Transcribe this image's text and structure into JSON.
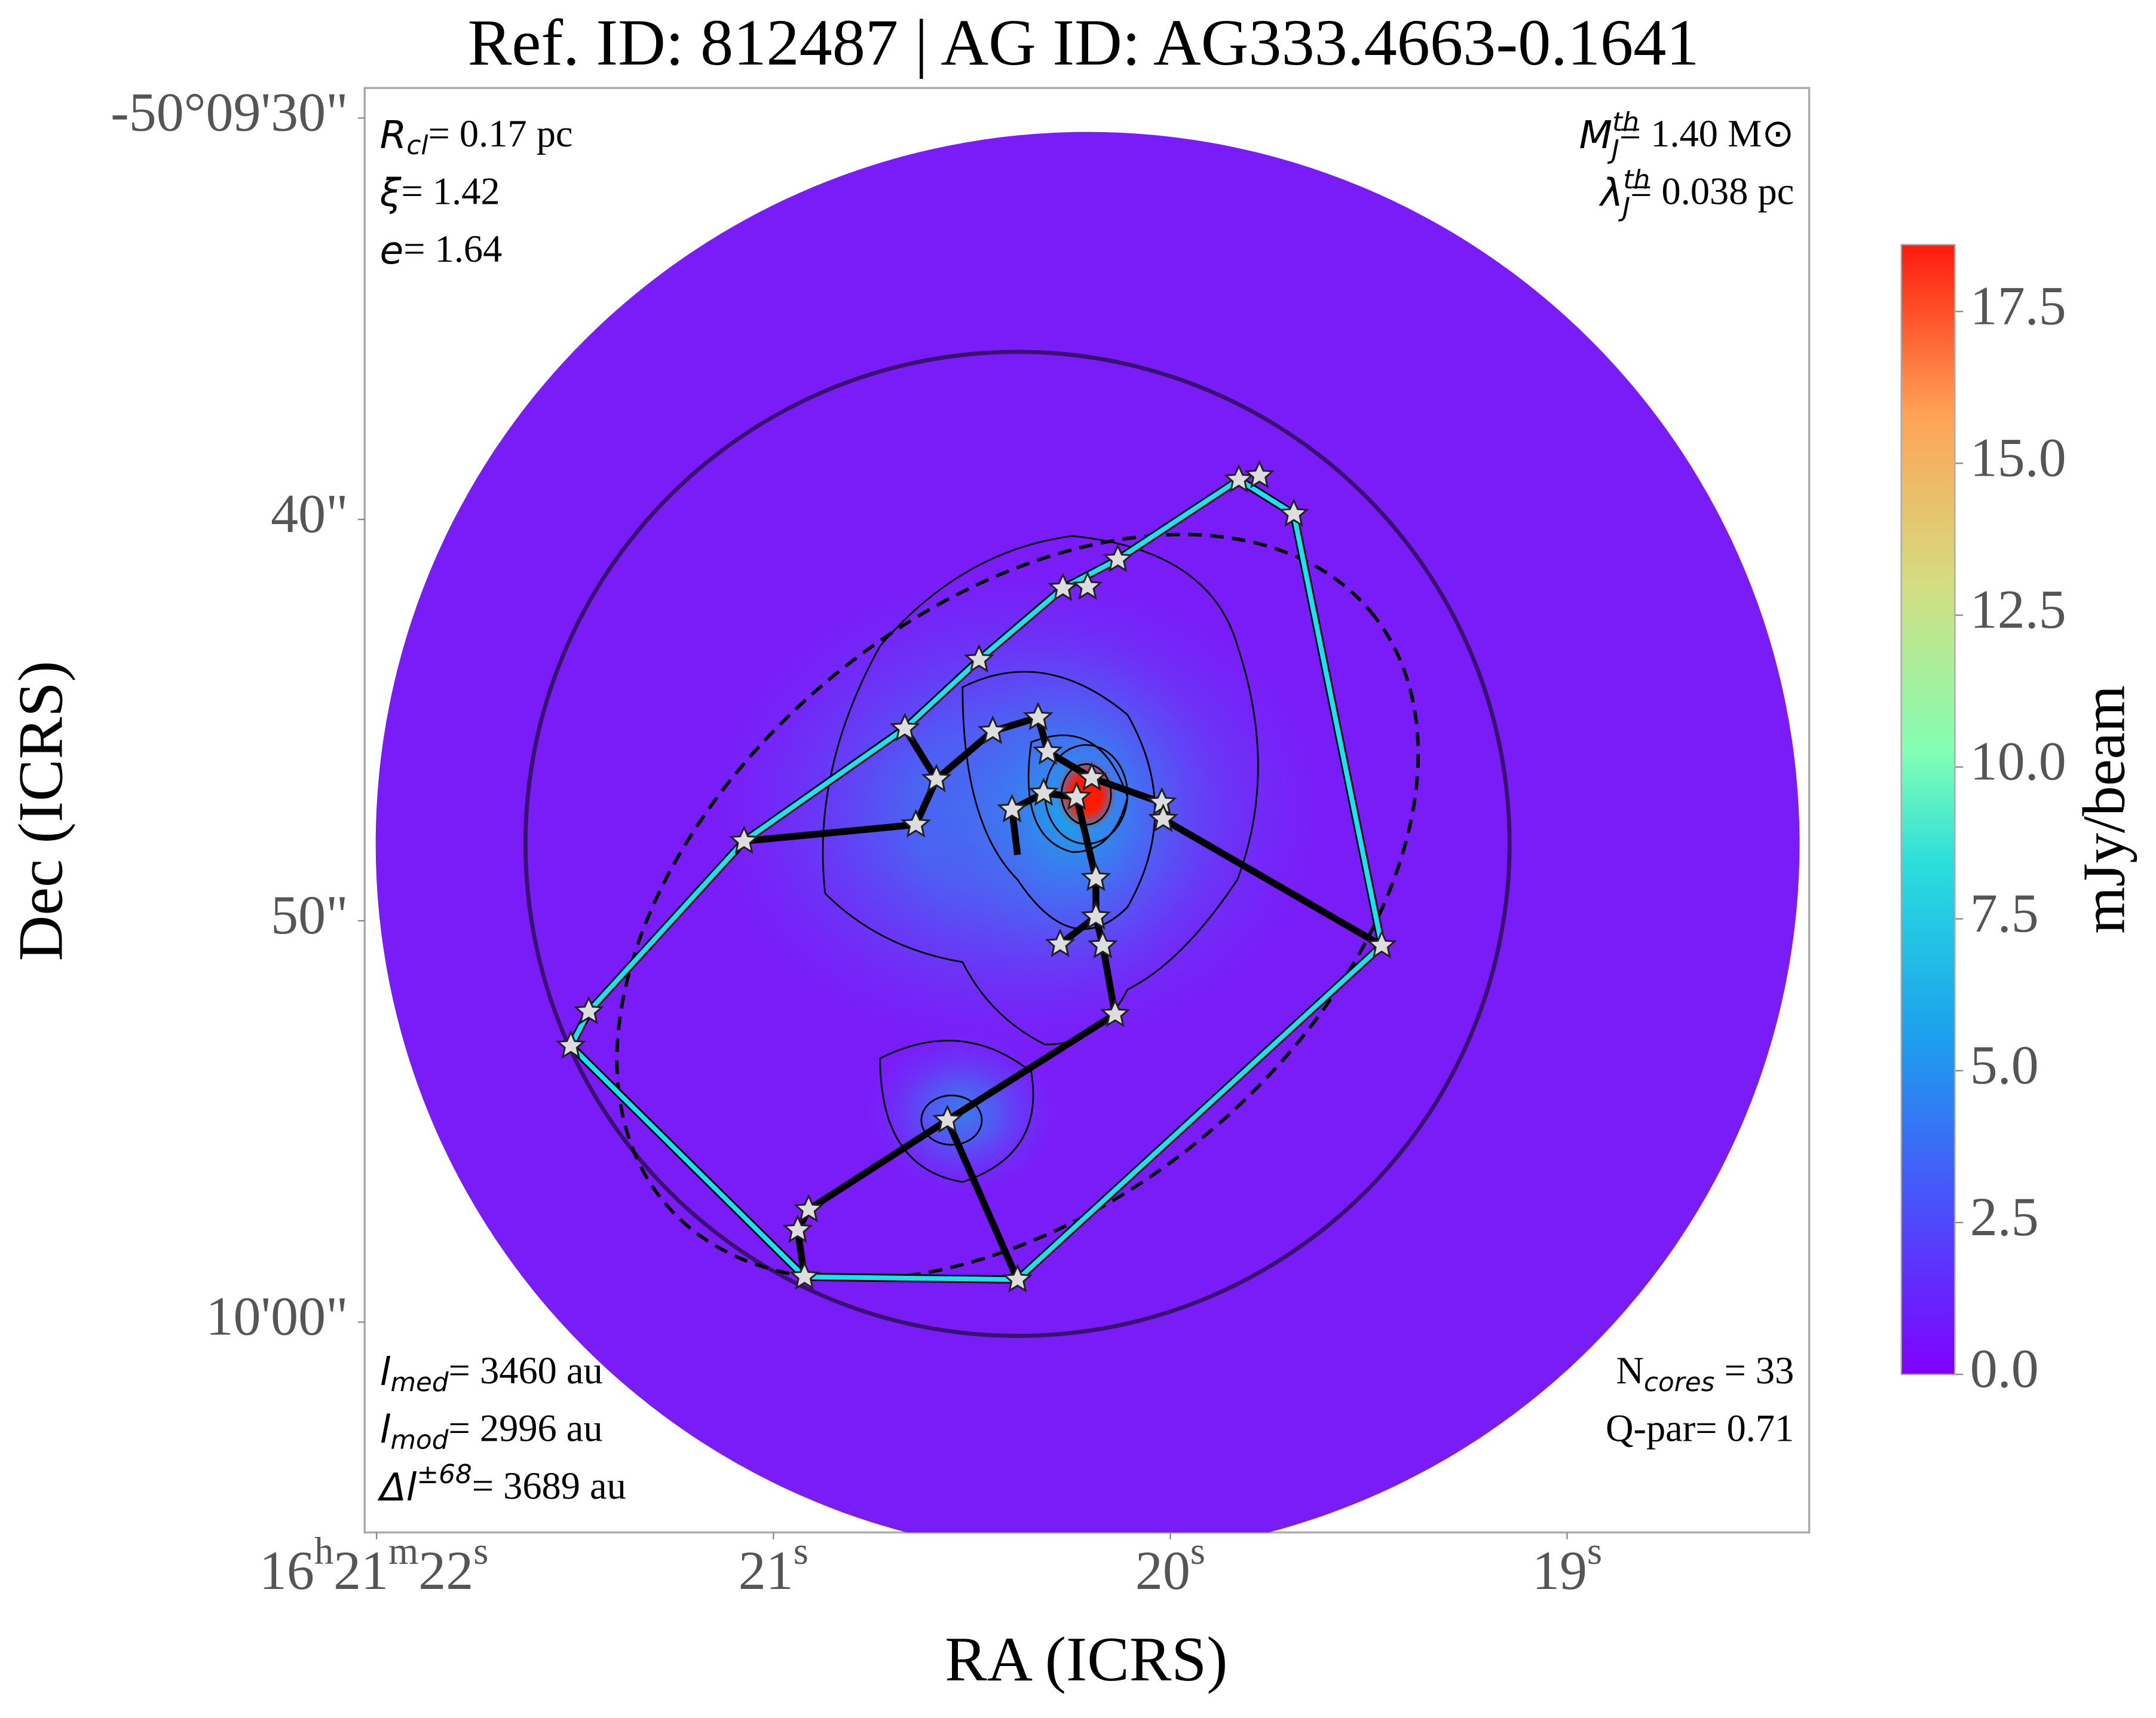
{
  "chart_data": {
    "type": "image",
    "title": "Ref. ID: 812487 | AG ID: AG333.4663-0.1641",
    "x_label": "RA (ICRS)",
    "y_label": "Dec (ICRS)",
    "xlim": [
      22.03,
      18.39
    ],
    "xticks": [
      {
        "value": 22,
        "label": "16h21m22s"
      },
      {
        "value": 21,
        "label": "21s"
      },
      {
        "value": 20,
        "label": "20s"
      },
      {
        "value": 19,
        "label": "19s"
      }
    ],
    "ylim": [
      65.24,
      29.25
    ],
    "yticks": [
      {
        "value": 30,
        "label": "-50°09'30\""
      },
      {
        "value": 40,
        "label": "40\""
      },
      {
        "value": 50,
        "label": "50\""
      },
      {
        "value": 60,
        "label": "10'00\""
      }
    ],
    "colorbar": {
      "label": "mJy/beam",
      "clim": [
        0,
        18.6
      ],
      "ticks": [
        {
          "value": 0,
          "label": "0.0"
        },
        2.5,
        {
          "value": 5,
          "label": "5.0"
        },
        7.5,
        {
          "value": 10,
          "label": "10.0"
        },
        12.5,
        {
          "value": 15,
          "label": "15.0"
        },
        17.5
      ]
    },
    "annotations": {
      "top_left": [
        {
          "sym": "R",
          "sub": "cl",
          "rest": "= 0.17 pc"
        },
        {
          "sym": "ξ",
          "rest": "= 1.42"
        },
        {
          "sym": "e",
          "rest": "= 1.64"
        }
      ],
      "top_right": [
        {
          "sym": "M",
          "sub": "J",
          "sup": "th",
          "rest": "= 1.40 M⊙"
        },
        {
          "sym": "λ",
          "sub": "J",
          "sup": "th",
          "rest": "= 0.038 pc"
        }
      ],
      "bottom_left": [
        {
          "sym": "l",
          "sub": "med",
          "rest": "= 3460 au"
        },
        {
          "sym": "l",
          "sub": "mod",
          "rest": "= 2996 au"
        },
        {
          "sym": "Δl",
          "sup": "±68",
          "rest": "= 3689 au"
        }
      ],
      "bottom_right": [
        {
          "plain": "N",
          "sub": "cores",
          "rest": " = 33"
        },
        {
          "rest": "Q-par= 0.71"
        }
      ]
    }
  }
}
